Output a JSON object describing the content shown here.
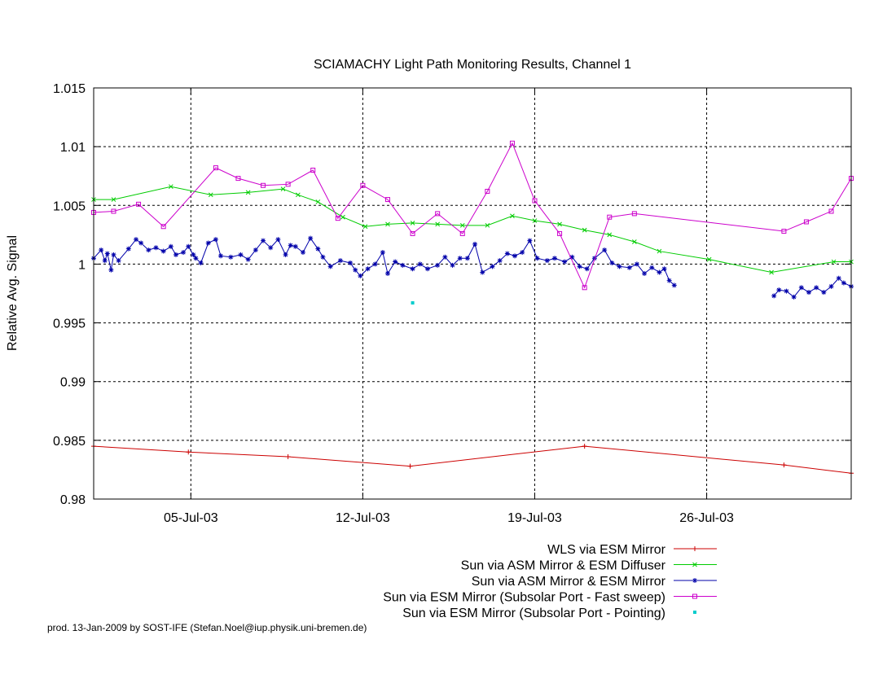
{
  "footer": "prod. 13-Jan-2009 by SOST-IFE (Stefan.Noel@iup.physik.uni-bremen.de)",
  "chart_data": {
    "type": "line",
    "title": "SCIAMACHY Light Path Monitoring Results, Channel 1",
    "xlabel": "",
    "ylabel": "Relative Avg. Signal",
    "x_unit": "day of July 2003",
    "xlim": [
      1.3,
      31.7
    ],
    "ylim": [
      0.98,
      1.015
    ],
    "yticks": [
      0.98,
      0.985,
      0.99,
      0.995,
      1,
      1.005,
      1.01,
      1.015
    ],
    "ytick_labels": [
      "0.98",
      "0.985",
      "0.99",
      "0.995",
      "1",
      "1.005",
      "1.01",
      "1.015"
    ],
    "xticks": [
      5.2,
      12.1,
      19.0,
      25.9
    ],
    "xtick_labels": [
      "05-Jul-03",
      "12-Jul-03",
      "19-Jul-03",
      "26-Jul-03"
    ],
    "grid": true,
    "legend_position": "bottom-right",
    "series": [
      {
        "name": "WLS via ESM Mirror",
        "color": "#cc0000",
        "marker": "plus",
        "points": [
          [
            1.3,
            0.9845
          ],
          [
            5.1,
            0.984
          ],
          [
            9.1,
            0.9836
          ],
          [
            14.0,
            0.9828
          ],
          [
            21.0,
            0.9845
          ],
          [
            29.0,
            0.9829
          ],
          [
            31.7,
            0.9822
          ]
        ]
      },
      {
        "name": "Sun via ASM Mirror & ESM Diffuser",
        "color": "#00cc00",
        "marker": "x",
        "points": [
          [
            1.3,
            1.0055
          ],
          [
            2.1,
            1.0055
          ],
          [
            4.4,
            1.0066
          ],
          [
            6.0,
            1.0059
          ],
          [
            7.5,
            1.0061
          ],
          [
            8.9,
            1.0064
          ],
          [
            9.5,
            1.0059
          ],
          [
            10.3,
            1.0053
          ],
          [
            11.3,
            1.004
          ],
          [
            12.2,
            1.0032
          ],
          [
            13.1,
            1.0034
          ],
          [
            14.1,
            1.0035
          ],
          [
            15.1,
            1.0034
          ],
          [
            16.1,
            1.0033
          ],
          [
            17.1,
            1.0033
          ],
          [
            18.1,
            1.0041
          ],
          [
            19.0,
            1.0037
          ],
          [
            20.0,
            1.0034
          ],
          [
            21.0,
            1.0029
          ],
          [
            22.0,
            1.0025
          ],
          [
            23.0,
            1.0019
          ],
          [
            24.0,
            1.0011
          ],
          [
            26.0,
            1.0004
          ],
          [
            28.5,
            0.9993
          ],
          [
            31.0,
            1.0002
          ],
          [
            31.7,
            1.0002
          ]
        ]
      },
      {
        "name": "Sun via ASM Mirror & ESM Mirror",
        "color": "#0000aa",
        "marker": "star",
        "points": [
          [
            1.3,
            1.0005
          ],
          [
            1.6,
            1.0012
          ],
          [
            1.75,
            1.0003
          ],
          [
            1.85,
            1.0009
          ],
          [
            2.0,
            0.9995
          ],
          [
            2.1,
            1.0008
          ],
          [
            2.3,
            1.0003
          ],
          [
            2.7,
            1.0013
          ],
          [
            3.0,
            1.0021
          ],
          [
            3.2,
            1.0018
          ],
          [
            3.5,
            1.0012
          ],
          [
            3.8,
            1.0014
          ],
          [
            4.1,
            1.0011
          ],
          [
            4.4,
            1.0015
          ],
          [
            4.6,
            1.0008
          ],
          [
            4.9,
            1.001
          ],
          [
            5.1,
            1.0015
          ],
          [
            5.3,
            1.0008
          ],
          [
            5.4,
            1.0005
          ],
          [
            5.6,
            1.0001
          ],
          [
            5.9,
            1.0018
          ],
          [
            6.2,
            1.0021
          ],
          [
            6.4,
            1.0007
          ],
          [
            6.8,
            1.0006
          ],
          [
            7.2,
            1.0008
          ],
          [
            7.5,
            1.0004
          ],
          [
            7.8,
            1.0012
          ],
          [
            8.1,
            1.002
          ],
          [
            8.4,
            1.0014
          ],
          [
            8.7,
            1.0021
          ],
          [
            9.0,
            1.0008
          ],
          [
            9.2,
            1.0016
          ],
          [
            9.4,
            1.0015
          ],
          [
            9.7,
            1.001
          ],
          [
            10.0,
            1.0022
          ],
          [
            10.3,
            1.0013
          ],
          [
            10.5,
            1.0006
          ],
          [
            10.8,
            0.9998
          ],
          [
            11.2,
            1.0003
          ],
          [
            11.6,
            1.0001
          ],
          [
            11.8,
            0.9995
          ],
          [
            12.0,
            0.999
          ],
          [
            12.3,
            0.9996
          ],
          [
            12.6,
            1.0
          ],
          [
            12.9,
            1.001
          ],
          [
            13.1,
            0.9992
          ],
          [
            13.4,
            1.0002
          ],
          [
            13.7,
            0.9999
          ],
          [
            14.1,
            0.9996
          ],
          [
            14.4,
            1.0
          ],
          [
            14.7,
            0.9996
          ],
          [
            15.1,
            0.9999
          ],
          [
            15.4,
            1.0006
          ],
          [
            15.7,
            0.9999
          ],
          [
            16.0,
            1.0005
          ],
          [
            16.3,
            1.0005
          ],
          [
            16.6,
            1.0017
          ],
          [
            16.9,
            0.9993
          ],
          [
            17.3,
            0.9998
          ],
          [
            17.6,
            1.0003
          ],
          [
            17.9,
            1.0009
          ],
          [
            18.2,
            1.0007
          ],
          [
            18.5,
            1.001
          ],
          [
            18.8,
            1.002
          ],
          [
            19.1,
            1.0005
          ],
          [
            19.5,
            1.0003
          ],
          [
            19.8,
            1.0005
          ],
          [
            20.2,
            1.0002
          ],
          [
            20.5,
            1.0006
          ],
          [
            20.8,
            0.9998
          ],
          [
            21.1,
            0.9996
          ],
          [
            21.4,
            1.0005
          ],
          [
            21.8,
            1.0012
          ],
          [
            22.1,
            1.0001
          ],
          [
            22.4,
            0.9998
          ],
          [
            22.8,
            0.9997
          ],
          [
            23.1,
            1.0
          ],
          [
            23.4,
            0.9992
          ],
          [
            23.7,
            0.9997
          ],
          [
            24.0,
            0.9993
          ],
          [
            24.2,
            0.9996
          ],
          [
            24.4,
            0.9986
          ],
          [
            24.6,
            0.9982
          ]
        ]
      },
      {
        "name": "Sun via ASM Mirror & ESM Mirror (late)",
        "legend": false,
        "color": "#0000aa",
        "marker": "star",
        "points": [
          [
            28.6,
            0.9973
          ],
          [
            28.8,
            0.9978
          ],
          [
            29.1,
            0.9977
          ],
          [
            29.4,
            0.9972
          ],
          [
            29.7,
            0.998
          ],
          [
            30.0,
            0.9976
          ],
          [
            30.3,
            0.998
          ],
          [
            30.6,
            0.9976
          ],
          [
            30.9,
            0.9981
          ],
          [
            31.2,
            0.9988
          ],
          [
            31.4,
            0.9984
          ],
          [
            31.7,
            0.9981
          ]
        ]
      },
      {
        "name": "Sun via ESM Mirror (Subsolar Port - Fast sweep)",
        "color": "#cc00cc",
        "marker": "square",
        "points": [
          [
            1.3,
            1.0044
          ],
          [
            2.1,
            1.0045
          ],
          [
            3.1,
            1.0051
          ],
          [
            4.1,
            1.0032
          ],
          [
            6.2,
            1.0082
          ],
          [
            7.1,
            1.0073
          ],
          [
            8.1,
            1.0067
          ],
          [
            9.1,
            1.0068
          ],
          [
            10.1,
            1.008
          ],
          [
            11.1,
            1.0039
          ],
          [
            12.1,
            1.0067
          ],
          [
            13.1,
            1.0055
          ],
          [
            14.1,
            1.0026
          ],
          [
            15.1,
            1.0043
          ],
          [
            16.1,
            1.0026
          ],
          [
            17.1,
            1.0062
          ],
          [
            18.1,
            1.0103
          ],
          [
            19.0,
            1.0054
          ],
          [
            20.0,
            1.0026
          ],
          [
            21.0,
            0.998
          ],
          [
            22.0,
            1.004
          ],
          [
            23.0,
            1.0043
          ],
          [
            29.0,
            1.0028
          ],
          [
            29.9,
            1.0036
          ],
          [
            30.9,
            1.0045
          ],
          [
            31.7,
            1.0073
          ]
        ]
      },
      {
        "name": "Sun via ESM Mirror (Subsolar Port - Pointing)",
        "color": "#00cccc",
        "marker": "dot",
        "points": [
          [
            14.1,
            0.9967
          ]
        ]
      }
    ]
  }
}
